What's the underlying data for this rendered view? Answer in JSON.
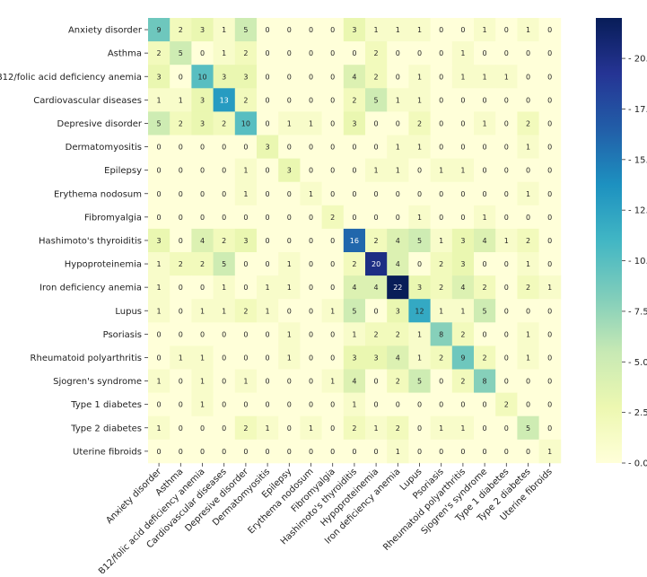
{
  "chart_data": {
    "type": "heatmap",
    "title": "",
    "xlabel": "",
    "ylabel": "",
    "labels": [
      "Anxiety disorder",
      "Asthma",
      "B12/folic acid deficiency anemia",
      "Cardiovascular diseases",
      "Depresive disorder",
      "Dermatomyositis",
      "Epilepsy",
      "Erythema nodosum",
      "Fibromyalgia",
      "Hashimoto's thyroiditis",
      "Hypoproteinemia",
      "Iron deficiency anemia",
      "Lupus",
      "Psoriasis",
      "Rheumatoid polyarthritis",
      "Sjogren's syndrome",
      "Type 1 diabetes",
      "Type 2 diabetes",
      "Uterine fibroids"
    ],
    "matrix": [
      [
        9,
        2,
        3,
        1,
        5,
        0,
        0,
        0,
        0,
        3,
        1,
        1,
        1,
        0,
        0,
        1,
        0,
        1,
        0
      ],
      [
        2,
        5,
        0,
        1,
        2,
        0,
        0,
        0,
        0,
        0,
        2,
        0,
        0,
        0,
        1,
        0,
        0,
        0,
        0
      ],
      [
        3,
        0,
        10,
        3,
        3,
        0,
        0,
        0,
        0,
        4,
        2,
        0,
        1,
        0,
        1,
        1,
        1,
        0,
        0
      ],
      [
        1,
        1,
        3,
        13,
        2,
        0,
        0,
        0,
        0,
        2,
        5,
        1,
        1,
        0,
        0,
        0,
        0,
        0,
        0
      ],
      [
        5,
        2,
        3,
        2,
        10,
        0,
        1,
        1,
        0,
        3,
        0,
        0,
        2,
        0,
        0,
        1,
        0,
        2,
        0
      ],
      [
        0,
        0,
        0,
        0,
        0,
        3,
        0,
        0,
        0,
        0,
        0,
        1,
        1,
        0,
        0,
        0,
        0,
        1,
        0
      ],
      [
        0,
        0,
        0,
        0,
        1,
        0,
        3,
        0,
        0,
        0,
        1,
        1,
        0,
        1,
        1,
        0,
        0,
        0,
        0
      ],
      [
        0,
        0,
        0,
        0,
        1,
        0,
        0,
        1,
        0,
        0,
        0,
        0,
        0,
        0,
        0,
        0,
        0,
        1,
        0
      ],
      [
        0,
        0,
        0,
        0,
        0,
        0,
        0,
        0,
        2,
        0,
        0,
        0,
        1,
        0,
        0,
        1,
        0,
        0,
        0
      ],
      [
        3,
        0,
        4,
        2,
        3,
        0,
        0,
        0,
        0,
        16,
        2,
        4,
        5,
        1,
        3,
        4,
        1,
        2,
        0
      ],
      [
        1,
        2,
        2,
        5,
        0,
        0,
        1,
        0,
        0,
        2,
        20,
        4,
        0,
        2,
        3,
        0,
        0,
        1,
        0
      ],
      [
        1,
        0,
        0,
        1,
        0,
        1,
        1,
        0,
        0,
        4,
        4,
        22,
        3,
        2,
        4,
        2,
        0,
        2,
        1
      ],
      [
        1,
        0,
        1,
        1,
        2,
        1,
        0,
        0,
        1,
        5,
        0,
        3,
        12,
        1,
        1,
        5,
        0,
        0,
        0
      ],
      [
        0,
        0,
        0,
        0,
        0,
        0,
        1,
        0,
        0,
        1,
        2,
        2,
        1,
        8,
        2,
        0,
        0,
        1,
        0
      ],
      [
        0,
        1,
        1,
        0,
        0,
        0,
        1,
        0,
        0,
        3,
        3,
        4,
        1,
        2,
        9,
        2,
        0,
        1,
        0
      ],
      [
        1,
        0,
        1,
        0,
        1,
        0,
        0,
        0,
        1,
        4,
        0,
        2,
        5,
        0,
        2,
        8,
        0,
        0,
        0
      ],
      [
        0,
        0,
        1,
        0,
        0,
        0,
        0,
        0,
        0,
        1,
        0,
        0,
        0,
        0,
        0,
        0,
        2,
        0,
        0
      ],
      [
        1,
        0,
        0,
        0,
        2,
        1,
        0,
        1,
        0,
        2,
        1,
        2,
        0,
        1,
        1,
        0,
        0,
        5,
        0
      ],
      [
        0,
        0,
        0,
        0,
        0,
        0,
        0,
        0,
        0,
        0,
        0,
        1,
        0,
        0,
        0,
        0,
        0,
        0,
        1
      ]
    ],
    "colormap": "YlGnBu",
    "vmin": 0,
    "vmax": 22,
    "colorbar_ticks": [
      "0.0",
      "2.5",
      "5.0",
      "7.5",
      "10.0",
      "12.5",
      "15.0",
      "17.5",
      "20.0"
    ]
  }
}
